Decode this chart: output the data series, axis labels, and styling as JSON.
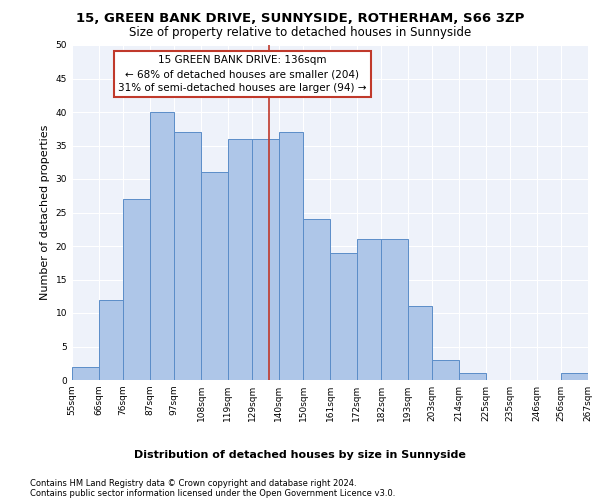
{
  "title1": "15, GREEN BANK DRIVE, SUNNYSIDE, ROTHERHAM, S66 3ZP",
  "title2": "Size of property relative to detached houses in Sunnyside",
  "xlabel": "Distribution of detached houses by size in Sunnyside",
  "ylabel": "Number of detached properties",
  "footnote1": "Contains HM Land Registry data © Crown copyright and database right 2024.",
  "footnote2": "Contains public sector information licensed under the Open Government Licence v3.0.",
  "annotation_title": "15 GREEN BANK DRIVE: 136sqm",
  "annotation_line1": "← 68% of detached houses are smaller (204)",
  "annotation_line2": "31% of semi-detached houses are larger (94) →",
  "property_size": 136,
  "bin_edges": [
    55,
    66,
    76,
    87,
    97,
    108,
    119,
    129,
    140,
    150,
    161,
    172,
    182,
    193,
    203,
    214,
    225,
    235,
    246,
    256,
    267
  ],
  "bar_values": [
    2,
    12,
    27,
    40,
    37,
    31,
    36,
    36,
    37,
    24,
    19,
    21,
    21,
    11,
    3,
    1,
    0,
    0,
    0,
    1
  ],
  "bar_color": "#aec6e8",
  "bar_edge_color": "#5b8dc8",
  "vline_color": "#c0392b",
  "vline_x": 136,
  "ylim": [
    0,
    50
  ],
  "yticks": [
    0,
    5,
    10,
    15,
    20,
    25,
    30,
    35,
    40,
    45,
    50
  ],
  "background_color": "#eef2fa",
  "grid_color": "#ffffff",
  "annotation_box_color": "#ffffff",
  "annotation_box_edge": "#c0392b",
  "title1_fontsize": 9.5,
  "title2_fontsize": 8.5,
  "ylabel_fontsize": 8,
  "xlabel_fontsize": 8,
  "tick_fontsize": 6.5,
  "annotation_fontsize": 7.5,
  "footnote_fontsize": 6
}
